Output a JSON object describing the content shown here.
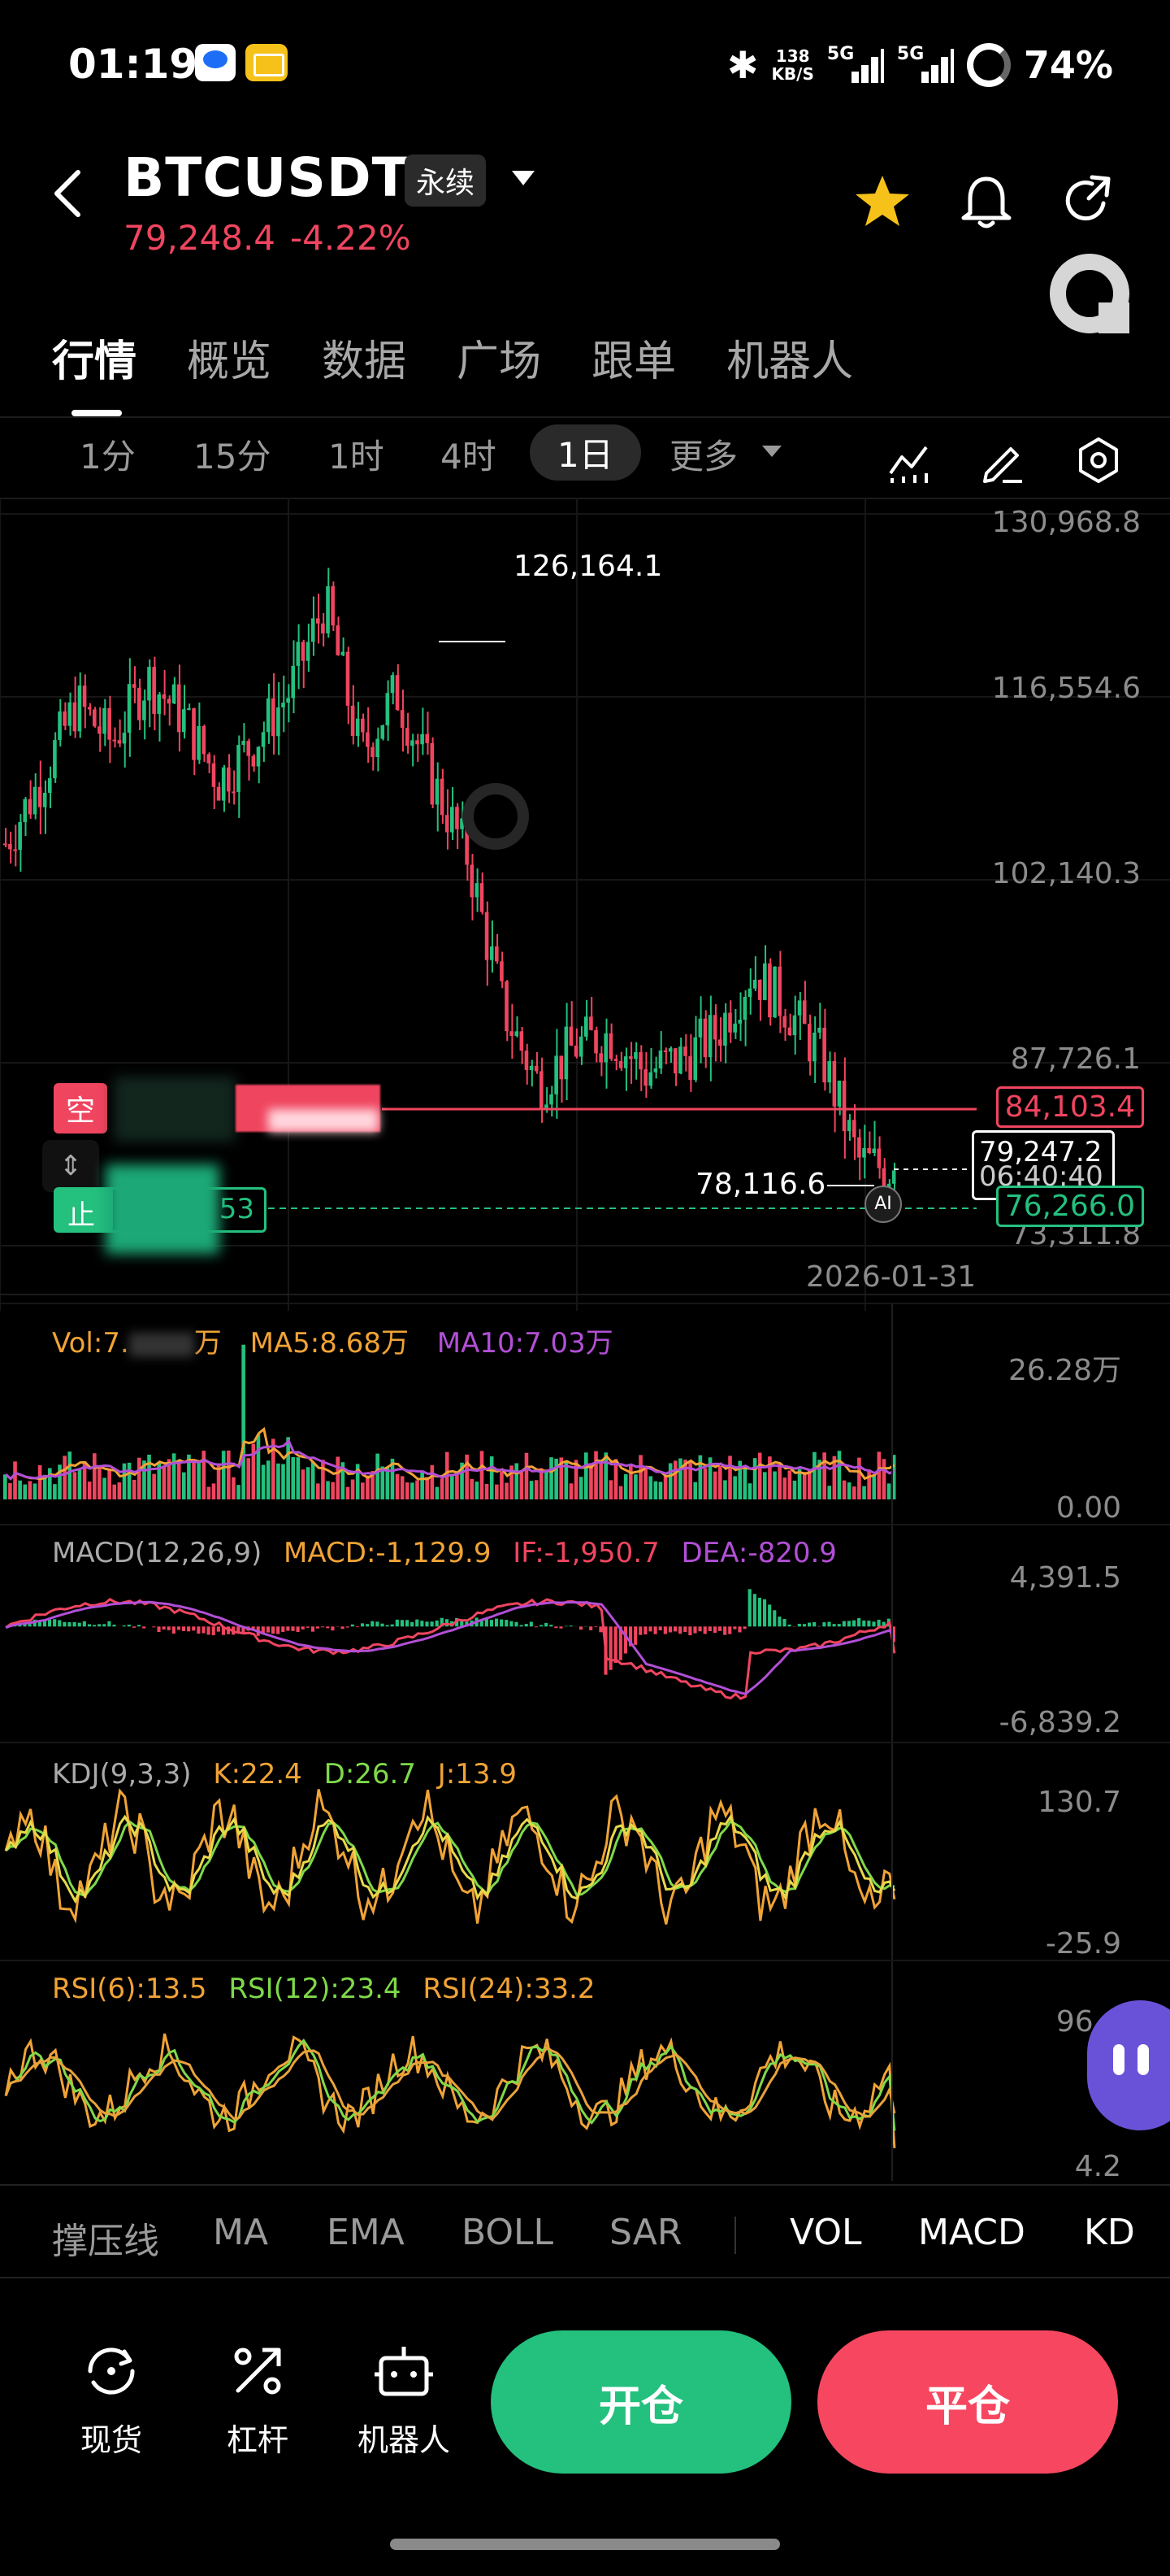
{
  "status_bar": {
    "time": "01:19",
    "net_speed_top": "138",
    "net_speed_unit": "KB/S",
    "signal1": "5G",
    "signal2": "5G",
    "battery": "74%"
  },
  "header": {
    "symbol": "BTCUSDT",
    "contract_type": "永续",
    "last_price": "79,248.4",
    "change_pct": "-4.22%"
  },
  "tabs": [
    "行情",
    "概览",
    "数据",
    "广场",
    "跟单",
    "机器人"
  ],
  "timeframes": {
    "items": [
      "1分",
      "15分",
      "1时",
      "4时",
      "1日"
    ],
    "active": "1日",
    "more_label": "更多"
  },
  "main_chart": {
    "y_axis_labels": [
      "130,968.8",
      "116,554.6",
      "102,140.3",
      "87,726.1",
      "73,311.8"
    ],
    "high_label": "126,164.1",
    "low_label": "78,116.6",
    "date_label": "2026-01-31",
    "short_position": {
      "side_label": "空",
      "price_label": "84,103.4"
    },
    "stop_loss": {
      "label": "止",
      "value_partial": "53",
      "price_label": "76,266.0"
    },
    "current_price_label": "79,247.2",
    "countdown_partial": "06:40:40",
    "ai_badge": "AI"
  },
  "volume_panel": {
    "vol_label": "Vol:7.",
    "vol_unit": "万",
    "ma5": "MA5:8.68万",
    "ma10": "MA10:7.03万",
    "axis_top": "26.28万",
    "axis_bottom": "0.00"
  },
  "macd_panel": {
    "title": "MACD(12,26,9)",
    "macd": "MACD:-1,129.9",
    "dif": "IF:-1,950.7",
    "dea": "DEA:-820.9",
    "axis_top": "4,391.5",
    "axis_bottom": "-6,839.2"
  },
  "kdj_panel": {
    "title": "KDJ(9,3,3)",
    "k": "K:22.4",
    "d": "D:26.7",
    "j": "J:13.9",
    "axis_top": "130.7",
    "axis_bottom": "-25.9"
  },
  "rsi_panel": {
    "rsi6": "RSI(6):13.5",
    "rsi12": "RSI(12):23.4",
    "rsi24": "RSI(24):33.2",
    "axis_top": "96.4",
    "axis_bottom": "4.2"
  },
  "indicator_menu": {
    "main": [
      "撑压线",
      "MA",
      "EMA",
      "BOLL",
      "SAR"
    ],
    "sub": [
      "VOL",
      "MACD",
      "KD"
    ]
  },
  "bottom_nav": {
    "items": [
      "现货",
      "杠杆",
      "机器人"
    ],
    "open_label": "开仓",
    "close_label": "平仓"
  },
  "colors": {
    "up": "#24c07e",
    "down": "#f0455f",
    "accent_yellow": "#f6c21a",
    "ma_purple": "#b24fd6",
    "line_orange": "#f0a336"
  },
  "chart_data": [
    {
      "type": "candlestick",
      "title": "BTCUSDT 1日",
      "ylim": [
        73311.8,
        130968.8
      ],
      "y_ticks": [
        130968.8,
        116554.6,
        102140.3,
        87726.1,
        73311.8
      ],
      "annotations": {
        "high": 126164.1,
        "low": 78116.6,
        "last": 79247.2,
        "short_entry": 84103.4,
        "stop": 76266.0
      },
      "x_label_shown": "2026-01-31",
      "close_trend": [
        105000,
        110000,
        116000,
        113000,
        118000,
        115000,
        110000,
        113000,
        117000,
        124000,
        112000,
        117000,
        110000,
        104000,
        92000,
        86000,
        89000,
        90000,
        87000,
        88000,
        90000,
        95000,
        92000,
        88000,
        80000,
        79247
      ]
    },
    {
      "type": "bar",
      "title": "Vol",
      "ylim": [
        0,
        262800
      ],
      "series": [
        {
          "name": "MA5",
          "values_last": 86800
        },
        {
          "name": "MA10",
          "values_last": 70300
        }
      ]
    },
    {
      "type": "line",
      "title": "MACD(12,26,9)",
      "ylim": [
        -6839.2,
        4391.5
      ],
      "series": [
        {
          "name": "MACD",
          "last": -1129.9
        },
        {
          "name": "DIF",
          "last": -1950.7
        },
        {
          "name": "DEA",
          "last": -820.9
        }
      ]
    },
    {
      "type": "line",
      "title": "KDJ(9,3,3)",
      "ylim": [
        -25.9,
        130.7
      ],
      "series": [
        {
          "name": "K",
          "last": 22.4
        },
        {
          "name": "D",
          "last": 26.7
        },
        {
          "name": "J",
          "last": 13.9
        }
      ]
    },
    {
      "type": "line",
      "title": "RSI",
      "ylim": [
        4.2,
        96.4
      ],
      "series": [
        {
          "name": "RSI(6)",
          "last": 13.5
        },
        {
          "name": "RSI(12)",
          "last": 23.4
        },
        {
          "name": "RSI(24)",
          "last": 33.2
        }
      ]
    }
  ]
}
